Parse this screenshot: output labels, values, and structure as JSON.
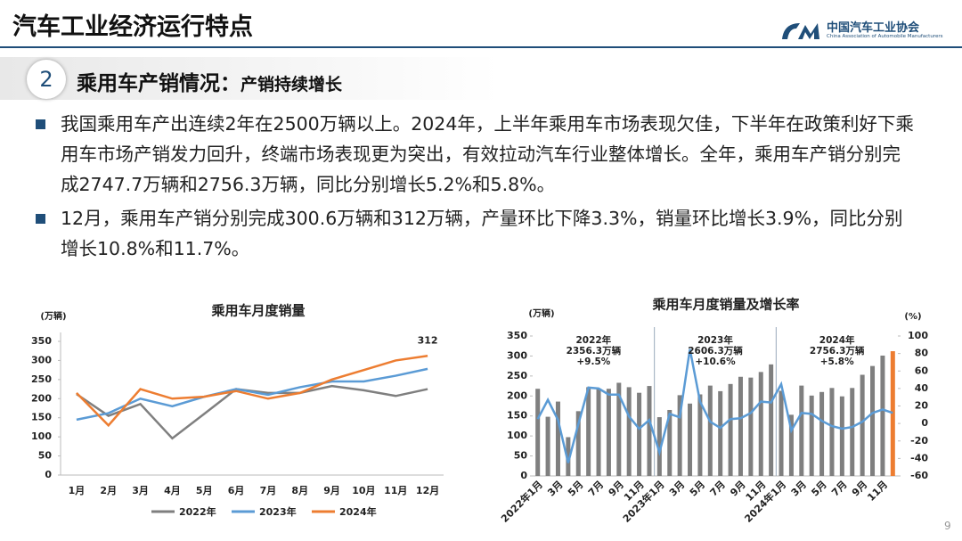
{
  "header": {
    "title": "汽车工业经济运行特点",
    "org_name": "中国汽车工业协会",
    "org_name_en": "China Association of Automobile Manufacturers"
  },
  "section": {
    "number": "2",
    "title": "乘用车产销情况：",
    "subtitle": "产销持续增长"
  },
  "bullets": [
    "我国乘用车产出连续2年在2500万辆以上。2024年，上半年乘用车市场表现欠佳，下半年在政策利好下乘用车市场产销发力回升，终端市场表现更为突出，有效拉动汽车行业整体增长。全年，乘用车产销分别完成2747.7万辆和2756.3万辆，同比分别增长5.2%和5.8%。",
    "12月，乘用车产销分别完成300.6万辆和312万辆，产量环比下降3.3%，销量环比增长3.9%，同比分别增长10.8%和11.7%。"
  ],
  "page_number": "9",
  "chart_data": [
    {
      "type": "line",
      "title": "乘用车月度销量",
      "y_label": "(万辆)",
      "categories": [
        "1月",
        "2月",
        "3月",
        "4月",
        "5月",
        "6月",
        "7月",
        "8月",
        "9月",
        "10月",
        "11月",
        "12月"
      ],
      "series": [
        {
          "name": "2022年",
          "color": "#7f7f7f",
          "values": [
            212,
            155,
            186,
            96,
            160,
            225,
            215,
            215,
            233,
            222,
            207,
            225
          ]
        },
        {
          "name": "2023年",
          "color": "#5b9bd5",
          "values": [
            145,
            162,
            200,
            180,
            205,
            225,
            210,
            230,
            245,
            245,
            260,
            278
          ]
        },
        {
          "name": "2024年",
          "color": "#ed7d31",
          "values": [
            215,
            130,
            225,
            200,
            205,
            220,
            200,
            215,
            250,
            275,
            300,
            312
          ]
        }
      ],
      "show_last_label": true,
      "ylim": [
        0,
        350
      ],
      "yticks": [
        0,
        50,
        100,
        150,
        200,
        250,
        300,
        350
      ]
    },
    {
      "type": "bar-line",
      "title": "乘用车月度销量及增长率",
      "y_label": "(万辆)",
      "y2_label": "(%)",
      "categories": [
        "2022年1月",
        null,
        "3月",
        null,
        "5月",
        null,
        "7月",
        null,
        "9月",
        null,
        "11月",
        null,
        "2023年1月",
        null,
        "3月",
        null,
        "5月",
        null,
        "7月",
        null,
        "9月",
        null,
        "11月",
        null,
        "2024年1月",
        null,
        "3月",
        null,
        "5月",
        null,
        "7月",
        null,
        "9月",
        null,
        "11月",
        null
      ],
      "series": [
        {
          "type": "bar",
          "color": "#7f7f7f",
          "last_color": "#ed7d31",
          "values": [
            218,
            148,
            186,
            97,
            162,
            222,
            217,
            218,
            233,
            222,
            208,
            225,
            147,
            165,
            202,
            181,
            204,
            226,
            212,
            230,
            248,
            246,
            260,
            279,
            213,
            153,
            226,
            201,
            210,
            220,
            199,
            220,
            253,
            275,
            301,
            312
          ]
        },
        {
          "type": "line",
          "axis": "y2",
          "color": "#5b9bd5",
          "values": [
            5,
            27,
            4,
            -45,
            -1,
            41,
            40,
            33,
            33,
            8,
            -6,
            4,
            -33,
            11,
            7,
            85,
            25,
            2,
            -5,
            5,
            6,
            12,
            25,
            24,
            45,
            -8,
            12,
            11,
            3,
            -3,
            -6,
            -4,
            2,
            12,
            16,
            12
          ]
        }
      ],
      "annotations": [
        [
          "2022年",
          "2356.3万辆",
          "+9.5%"
        ],
        [
          "2023年",
          "2606.3万辆",
          "+10.6%"
        ],
        [
          "2024年",
          "2756.3万辆",
          "+5.8%"
        ]
      ],
      "ylim": [
        0,
        350
      ],
      "yticks": [
        0,
        50,
        100,
        150,
        200,
        250,
        300,
        350
      ],
      "y2lim": [
        -60,
        100
      ],
      "y2ticks": [
        -60,
        -40,
        -20,
        0,
        20,
        40,
        60,
        80,
        100
      ]
    }
  ]
}
